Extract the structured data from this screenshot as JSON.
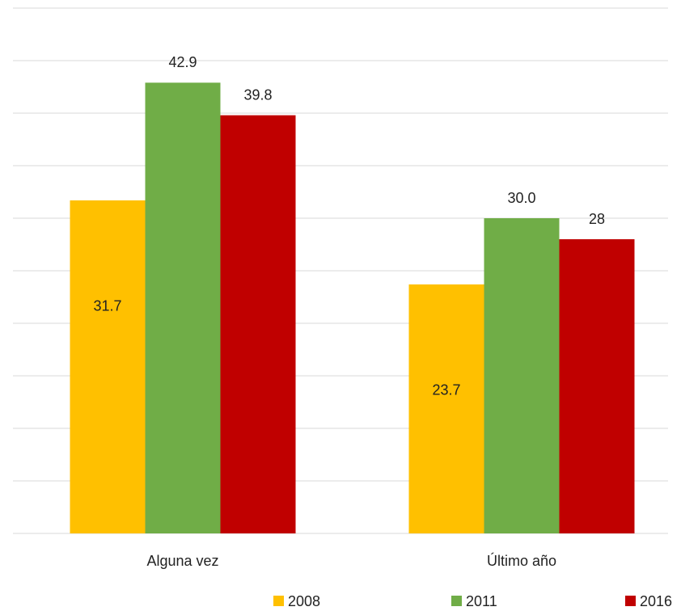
{
  "chart_data": {
    "type": "bar",
    "categories": [
      "Alguna vez",
      "Último año"
    ],
    "series": [
      {
        "name": "2008",
        "color": "#ffc000",
        "values": [
          31.7,
          23.7
        ]
      },
      {
        "name": "2011",
        "color": "#70ad47",
        "values": [
          42.9,
          30.0
        ],
        "value_labels": [
          "42.9",
          "30.0"
        ]
      },
      {
        "name": "2016",
        "color": "#c00000",
        "values": [
          39.8,
          28
        ]
      }
    ],
    "ylim": [
      0,
      50
    ],
    "yticks": [
      0,
      5,
      10,
      15,
      20,
      25,
      30,
      35,
      40,
      45,
      50
    ],
    "grid": true,
    "legend": "bottom"
  }
}
